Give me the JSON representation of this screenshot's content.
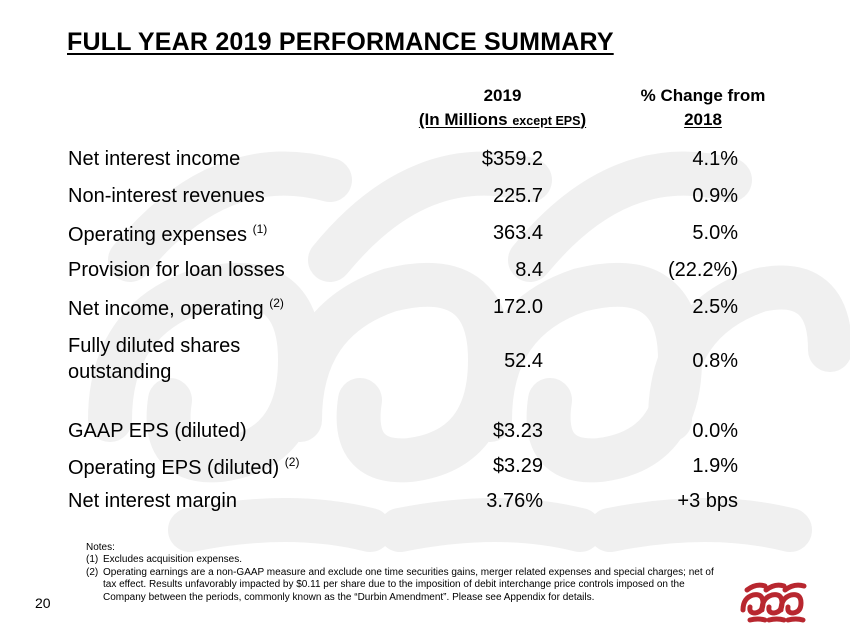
{
  "title": "FULL YEAR 2019 PERFORMANCE SUMMARY",
  "headers": {
    "col1_line1": "2019",
    "col1_line2_a": "(In Millions ",
    "col1_line2_b": "except EPS",
    "col1_line2_c": ")",
    "col2_line1": "% Change from",
    "col2_line2": "2018"
  },
  "rows": [
    {
      "label": "Net interest income",
      "note": "",
      "value": "$359.2",
      "change": "4.1%"
    },
    {
      "label": "Non-interest revenues",
      "note": "",
      "value": "225.7",
      "change": "0.9%"
    },
    {
      "label": "Operating expenses",
      "note": "(1)",
      "value": "363.4",
      "change": "5.0%"
    },
    {
      "label": "Provision for loan losses",
      "note": "",
      "value": "8.4",
      "change": "(22.2%)"
    },
    {
      "label": "Net income, operating",
      "note": "(2)",
      "value": "172.0",
      "change": "2.5%"
    },
    {
      "label": "Fully diluted shares outstanding",
      "note": "",
      "value": "52.4",
      "change": "0.8%"
    },
    {
      "label": "GAAP EPS (diluted)",
      "note": "",
      "value": "$3.23",
      "change": "0.0%"
    },
    {
      "label": "Operating EPS (diluted)",
      "note": "(2)",
      "value": "$3.29",
      "change": "1.9%"
    },
    {
      "label": "Net interest margin",
      "note": "",
      "value": "3.76%",
      "change": "+3 bps"
    }
  ],
  "notes": {
    "heading": "Notes:",
    "items": [
      {
        "num": "(1)",
        "text": "Excludes acquisition expenses."
      },
      {
        "num": "(2)",
        "text": "Operating earnings are a non-GAAP measure and exclude one time securities gains, merger related expenses and special charges; net of tax effect. Results unfavorably  impacted by $0.11 per share due to the imposition of debit interchange price controls imposed on the Company between the periods, commonly known as the “Durbin Amendment”. Please see Appendix for details."
      }
    ]
  },
  "page_number": "20",
  "colors": {
    "brand_red": "#b8272f",
    "watermark": "#f1f1f1"
  }
}
